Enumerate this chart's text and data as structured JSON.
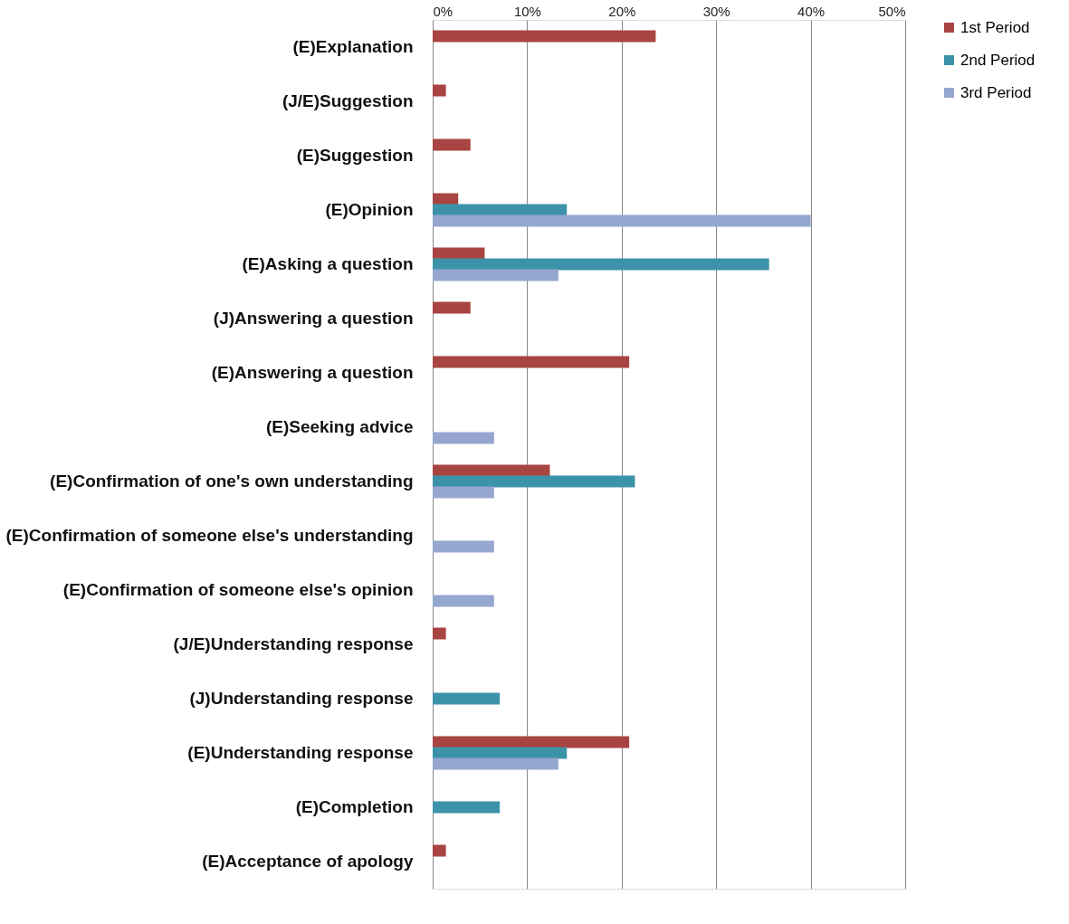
{
  "chart_data": {
    "type": "bar",
    "orientation": "horizontal",
    "categories": [
      "(E)Explanation",
      "(J/E)Suggestion",
      "(E)Suggestion",
      "(E)Opinion",
      "(E)Asking a question",
      "(J)Answering a question",
      "(E)Answering a question",
      "(E)Seeking advice",
      "(E)Confirmation of one's own understanding",
      "(E)Confirmation of someone else's understanding",
      "(E)Confirmation of someone else's opinion",
      "(J/E)Understanding response",
      "(J)Understanding response",
      "(E)Understanding response",
      "(E)Completion",
      "(E)Acceptance of apology"
    ],
    "series": [
      {
        "name": "1st Period",
        "color": "#a84442",
        "values": [
          23.6,
          1.4,
          4.0,
          2.7,
          5.5,
          4.0,
          20.8,
          null,
          12.4,
          null,
          null,
          1.4,
          null,
          20.8,
          null,
          1.4
        ]
      },
      {
        "name": "2nd Period",
        "color": "#3c93a9",
        "values": [
          null,
          null,
          null,
          14.2,
          35.6,
          null,
          null,
          null,
          21.4,
          null,
          null,
          null,
          7.1,
          14.2,
          7.1,
          null
        ]
      },
      {
        "name": "3rd Period",
        "color": "#95a6cf",
        "values": [
          null,
          null,
          null,
          40.0,
          13.3,
          null,
          null,
          6.5,
          6.5,
          6.5,
          6.5,
          null,
          null,
          13.3,
          null,
          null
        ]
      }
    ],
    "xlim": [
      0,
      50
    ],
    "xticks": [
      {
        "value": 0,
        "label": "0%"
      },
      {
        "value": 10,
        "label": "10%"
      },
      {
        "value": 20,
        "label": "20%"
      },
      {
        "value": 30,
        "label": "30%"
      },
      {
        "value": 40,
        "label": "40%"
      },
      {
        "value": 50,
        "label": "50%"
      }
    ],
    "grid": "x",
    "legend": "top right"
  }
}
